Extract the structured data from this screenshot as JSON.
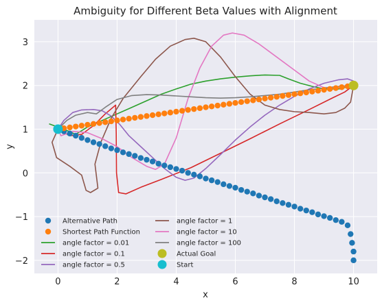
{
  "chart_data": {
    "type": "line",
    "title": "Ambiguity for Different Beta Values with Alignment",
    "xlabel": "x",
    "ylabel": "y",
    "xlim": [
      -0.8,
      10.8
    ],
    "ylim": [
      -2.3,
      3.5
    ],
    "xticks": [
      0,
      2,
      4,
      6,
      8,
      10
    ],
    "yticks": [
      -2,
      -1,
      0,
      1,
      2,
      3
    ],
    "grid": true,
    "legend_placement": "lower-left",
    "background": "#eaeaf2",
    "series": [
      {
        "name": "Alternative Path",
        "kind": "points",
        "color": "#1f77b4",
        "points": [
          [
            0.0,
            1.0
          ],
          [
            0.2,
            0.95
          ],
          [
            0.4,
            0.9
          ],
          [
            0.6,
            0.85
          ],
          [
            0.8,
            0.8
          ],
          [
            1.0,
            0.75
          ],
          [
            1.2,
            0.7
          ],
          [
            1.4,
            0.66
          ],
          [
            1.6,
            0.61
          ],
          [
            1.8,
            0.56
          ],
          [
            2.0,
            0.52
          ],
          [
            2.2,
            0.47
          ],
          [
            2.4,
            0.43
          ],
          [
            2.6,
            0.39
          ],
          [
            2.8,
            0.34
          ],
          [
            3.0,
            0.3
          ],
          [
            3.2,
            0.26
          ],
          [
            3.4,
            0.21
          ],
          [
            3.6,
            0.17
          ],
          [
            3.8,
            0.13
          ],
          [
            4.0,
            0.09
          ],
          [
            4.2,
            0.05
          ],
          [
            4.4,
            0.0
          ],
          [
            4.6,
            -0.04
          ],
          [
            4.8,
            -0.08
          ],
          [
            5.0,
            -0.13
          ],
          [
            5.2,
            -0.17
          ],
          [
            5.4,
            -0.21
          ],
          [
            5.6,
            -0.26
          ],
          [
            5.8,
            -0.3
          ],
          [
            6.0,
            -0.34
          ],
          [
            6.2,
            -0.39
          ],
          [
            6.4,
            -0.43
          ],
          [
            6.6,
            -0.47
          ],
          [
            6.8,
            -0.52
          ],
          [
            7.0,
            -0.56
          ],
          [
            7.2,
            -0.6
          ],
          [
            7.4,
            -0.65
          ],
          [
            7.6,
            -0.69
          ],
          [
            7.8,
            -0.73
          ],
          [
            8.0,
            -0.77
          ],
          [
            8.2,
            -0.82
          ],
          [
            8.4,
            -0.86
          ],
          [
            8.6,
            -0.9
          ],
          [
            8.8,
            -0.95
          ],
          [
            9.0,
            -0.99
          ],
          [
            9.2,
            -1.03
          ],
          [
            9.4,
            -1.08
          ],
          [
            9.6,
            -1.12
          ],
          [
            9.8,
            -1.2
          ],
          [
            9.9,
            -1.4
          ],
          [
            9.95,
            -1.6
          ],
          [
            10.0,
            -1.8
          ],
          [
            10.0,
            -2.0
          ]
        ]
      },
      {
        "name": "Shortest Path Function",
        "kind": "points",
        "color": "#ff7f0e",
        "points": [
          [
            0.0,
            1.0
          ],
          [
            0.2,
            1.02
          ],
          [
            0.4,
            1.04
          ],
          [
            0.6,
            1.06
          ],
          [
            0.8,
            1.08
          ],
          [
            1.0,
            1.1
          ],
          [
            1.2,
            1.12
          ],
          [
            1.4,
            1.14
          ],
          [
            1.6,
            1.16
          ],
          [
            1.8,
            1.18
          ],
          [
            2.0,
            1.2
          ],
          [
            2.2,
            1.22
          ],
          [
            2.4,
            1.24
          ],
          [
            2.6,
            1.26
          ],
          [
            2.8,
            1.28
          ],
          [
            3.0,
            1.3
          ],
          [
            3.2,
            1.32
          ],
          [
            3.4,
            1.34
          ],
          [
            3.6,
            1.36
          ],
          [
            3.8,
            1.38
          ],
          [
            4.0,
            1.4
          ],
          [
            4.2,
            1.42
          ],
          [
            4.4,
            1.44
          ],
          [
            4.6,
            1.46
          ],
          [
            4.8,
            1.48
          ],
          [
            5.0,
            1.5
          ],
          [
            5.2,
            1.52
          ],
          [
            5.4,
            1.54
          ],
          [
            5.6,
            1.56
          ],
          [
            5.8,
            1.58
          ],
          [
            6.0,
            1.6
          ],
          [
            6.2,
            1.62
          ],
          [
            6.4,
            1.64
          ],
          [
            6.6,
            1.66
          ],
          [
            6.8,
            1.68
          ],
          [
            7.0,
            1.7
          ],
          [
            7.2,
            1.72
          ],
          [
            7.4,
            1.74
          ],
          [
            7.6,
            1.76
          ],
          [
            7.8,
            1.78
          ],
          [
            8.0,
            1.8
          ],
          [
            8.2,
            1.82
          ],
          [
            8.4,
            1.84
          ],
          [
            8.6,
            1.86
          ],
          [
            8.8,
            1.88
          ],
          [
            9.0,
            1.9
          ],
          [
            9.2,
            1.92
          ],
          [
            9.4,
            1.94
          ],
          [
            9.6,
            1.96
          ],
          [
            9.8,
            1.98
          ],
          [
            10.0,
            2.0
          ]
        ]
      },
      {
        "name": "angle factor = 0.01",
        "kind": "line",
        "color": "#2ca02c",
        "points": [
          [
            -0.3,
            1.12
          ],
          [
            0.2,
            1.0
          ],
          [
            0.6,
            0.88
          ],
          [
            1.0,
            1.05
          ],
          [
            1.5,
            1.2
          ],
          [
            2.0,
            1.35
          ],
          [
            2.5,
            1.5
          ],
          [
            3.0,
            1.65
          ],
          [
            3.5,
            1.8
          ],
          [
            4.0,
            1.92
          ],
          [
            4.5,
            2.03
          ],
          [
            5.0,
            2.1
          ],
          [
            5.5,
            2.15
          ],
          [
            6.0,
            2.19
          ],
          [
            6.5,
            2.22
          ],
          [
            7.0,
            2.24
          ],
          [
            7.5,
            2.23
          ],
          [
            7.8,
            2.15
          ],
          [
            8.2,
            2.05
          ],
          [
            8.6,
            1.98
          ],
          [
            9.0,
            1.92
          ],
          [
            9.5,
            1.92
          ],
          [
            10.0,
            2.0
          ]
        ]
      },
      {
        "name": "angle factor = 0.1",
        "kind": "line",
        "color": "#d62728",
        "points": [
          [
            0.0,
            1.0
          ],
          [
            0.4,
            0.85
          ],
          [
            0.8,
            0.88
          ],
          [
            1.2,
            1.08
          ],
          [
            1.6,
            1.35
          ],
          [
            1.95,
            1.55
          ],
          [
            1.97,
            0.9
          ],
          [
            1.98,
            0.0
          ],
          [
            2.05,
            -0.45
          ],
          [
            2.3,
            -0.48
          ],
          [
            2.8,
            -0.33
          ],
          [
            3.5,
            -0.15
          ],
          [
            4.5,
            0.12
          ],
          [
            5.5,
            0.45
          ],
          [
            6.5,
            0.78
          ],
          [
            7.5,
            1.12
          ],
          [
            8.5,
            1.45
          ],
          [
            9.3,
            1.72
          ],
          [
            9.7,
            1.85
          ],
          [
            10.0,
            2.0
          ]
        ]
      },
      {
        "name": "angle factor = 0.5",
        "kind": "line",
        "color": "#9467bd",
        "points": [
          [
            0.0,
            1.0
          ],
          [
            0.2,
            1.2
          ],
          [
            0.5,
            1.38
          ],
          [
            0.8,
            1.44
          ],
          [
            1.2,
            1.45
          ],
          [
            1.5,
            1.42
          ],
          [
            1.8,
            1.3
          ],
          [
            2.1,
            1.1
          ],
          [
            2.4,
            0.85
          ],
          [
            2.8,
            0.6
          ],
          [
            3.2,
            0.35
          ],
          [
            3.6,
            0.1
          ],
          [
            4.0,
            -0.1
          ],
          [
            4.3,
            -0.17
          ],
          [
            4.6,
            -0.12
          ],
          [
            5.0,
            0.1
          ],
          [
            5.5,
            0.42
          ],
          [
            6.0,
            0.75
          ],
          [
            6.5,
            1.05
          ],
          [
            7.0,
            1.32
          ],
          [
            7.5,
            1.55
          ],
          [
            8.0,
            1.75
          ],
          [
            8.5,
            1.92
          ],
          [
            9.0,
            2.05
          ],
          [
            9.5,
            2.13
          ],
          [
            9.8,
            2.15
          ],
          [
            10.0,
            2.1
          ]
        ]
      },
      {
        "name": "angle factor = 1",
        "kind": "line",
        "color": "#8c564b",
        "points": [
          [
            0.0,
            1.0
          ],
          [
            -0.2,
            0.7
          ],
          [
            -0.05,
            0.35
          ],
          [
            0.4,
            0.15
          ],
          [
            0.8,
            -0.05
          ],
          [
            0.95,
            -0.4
          ],
          [
            1.1,
            -0.45
          ],
          [
            1.35,
            -0.35
          ],
          [
            1.25,
            0.2
          ],
          [
            1.45,
            0.7
          ],
          [
            1.8,
            1.25
          ],
          [
            2.2,
            1.7
          ],
          [
            2.8,
            2.2
          ],
          [
            3.3,
            2.6
          ],
          [
            3.8,
            2.9
          ],
          [
            4.3,
            3.05
          ],
          [
            4.6,
            3.08
          ],
          [
            5.0,
            3.0
          ],
          [
            5.5,
            2.65
          ],
          [
            6.0,
            2.2
          ],
          [
            6.5,
            1.8
          ],
          [
            7.0,
            1.55
          ],
          [
            7.5,
            1.45
          ],
          [
            8.0,
            1.4
          ],
          [
            8.5,
            1.38
          ],
          [
            9.0,
            1.35
          ],
          [
            9.4,
            1.38
          ],
          [
            9.7,
            1.48
          ],
          [
            9.9,
            1.62
          ],
          [
            10.0,
            2.0
          ]
        ]
      },
      {
        "name": "angle factor = 10",
        "kind": "line",
        "color": "#e377c2",
        "points": [
          [
            0.0,
            1.0
          ],
          [
            0.1,
            0.85
          ],
          [
            0.5,
            0.95
          ],
          [
            1.0,
            0.92
          ],
          [
            1.5,
            0.78
          ],
          [
            2.0,
            0.6
          ],
          [
            2.5,
            0.35
          ],
          [
            3.0,
            0.15
          ],
          [
            3.3,
            0.08
          ],
          [
            3.6,
            0.2
          ],
          [
            4.0,
            0.8
          ],
          [
            4.4,
            1.7
          ],
          [
            4.8,
            2.4
          ],
          [
            5.2,
            2.9
          ],
          [
            5.6,
            3.15
          ],
          [
            5.9,
            3.2
          ],
          [
            6.3,
            3.15
          ],
          [
            6.8,
            2.95
          ],
          [
            7.4,
            2.65
          ],
          [
            8.0,
            2.35
          ],
          [
            8.5,
            2.1
          ],
          [
            9.0,
            1.95
          ],
          [
            9.5,
            1.95
          ],
          [
            10.0,
            2.0
          ]
        ]
      },
      {
        "name": "angle factor = 100",
        "kind": "line",
        "color": "#7f7f7f",
        "points": [
          [
            0.0,
            1.0
          ],
          [
            0.3,
            1.2
          ],
          [
            0.6,
            1.32
          ],
          [
            1.0,
            1.38
          ],
          [
            1.3,
            1.35
          ],
          [
            1.6,
            1.5
          ],
          [
            2.0,
            1.68
          ],
          [
            2.5,
            1.77
          ],
          [
            3.0,
            1.79
          ],
          [
            3.5,
            1.78
          ],
          [
            4.0,
            1.76
          ],
          [
            4.5,
            1.74
          ],
          [
            5.0,
            1.72
          ],
          [
            5.5,
            1.71
          ],
          [
            6.0,
            1.72
          ],
          [
            6.5,
            1.74
          ],
          [
            7.0,
            1.77
          ],
          [
            7.5,
            1.8
          ],
          [
            8.0,
            1.85
          ],
          [
            8.5,
            1.9
          ],
          [
            9.0,
            1.94
          ],
          [
            9.5,
            1.98
          ],
          [
            10.0,
            2.0
          ]
        ]
      },
      {
        "name": "Actual Goal",
        "kind": "marker",
        "color": "#bcbd22",
        "points": [
          [
            10.0,
            2.0
          ]
        ]
      },
      {
        "name": "Start",
        "kind": "marker",
        "color": "#17becf",
        "points": [
          [
            0.0,
            1.0
          ]
        ]
      }
    ]
  }
}
